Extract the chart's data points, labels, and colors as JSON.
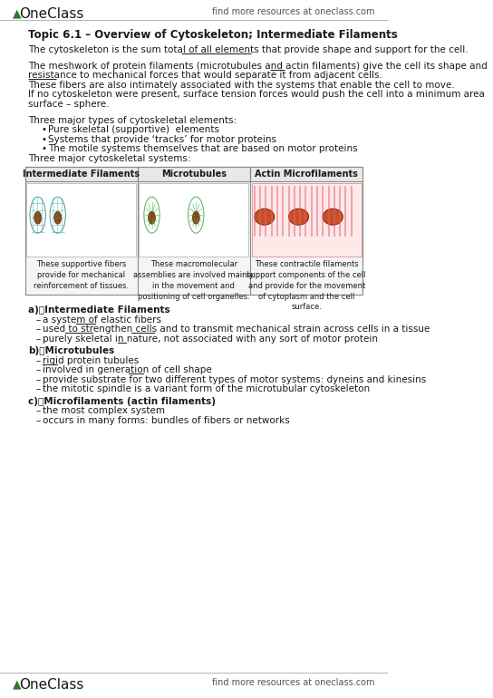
{
  "bg_color": "#ffffff",
  "header_text_left": "OneClass",
  "header_text_right": "find more resources at oneclass.com",
  "footer_text_left": "OneClass",
  "footer_text_right": "find more resources at oneclass.com",
  "logo_color": "#2d7a2d",
  "title": "Topic 6.1 – Overview of Cytoskeleton; Intermediate Filaments",
  "body_lines": [
    {
      "text": "The cytoskeleton is the sum total of all elements that provide shape and support for the cell.",
      "underline_parts": [
        "provide shape and support"
      ],
      "indent": 0,
      "bold": false
    },
    {
      "text": "",
      "indent": 0
    },
    {
      "text": "The meshwork of protein filaments (microtubules and actin filaments) give the cell its shape and",
      "underline_parts": [
        "shape"
      ],
      "indent": 0,
      "bold": false
    },
    {
      "text": "resistance to mechanical forces that would separate it from adjacent cells.",
      "underline_parts": [
        "resistance"
      ],
      "indent": 0,
      "bold": false
    },
    {
      "text": "These fibers are also intimately associated with the systems that enable the cell to move.",
      "underline_parts": [],
      "indent": 0,
      "bold": false
    },
    {
      "text": "If no cytoskeleton were present, surface tension forces would push the cell into a minimum area",
      "underline_parts": [],
      "indent": 0,
      "bold": false
    },
    {
      "text": "surface – sphere.",
      "underline_parts": [],
      "indent": 0,
      "bold": false
    },
    {
      "text": "",
      "indent": 0
    },
    {
      "text": "Three major types of cytoskeletal elements:",
      "underline_parts": [],
      "indent": 0,
      "bold": false
    },
    {
      "text": "Pure skeletal (supportive)  elements",
      "underline_parts": [],
      "indent": 1,
      "bullet": true,
      "bold": false
    },
    {
      "text": "Systems that provide ‘tracks’ for motor proteins",
      "underline_parts": [],
      "indent": 1,
      "bullet": true,
      "bold": false
    },
    {
      "text": "The motile systems themselves that are based on motor proteins",
      "underline_parts": [],
      "indent": 1,
      "bullet": true,
      "bold": false
    },
    {
      "text": "Three major cytoskeletal systems:",
      "underline_parts": [],
      "indent": 0,
      "bold": false
    }
  ],
  "table": {
    "headers": [
      "Intermediate Filaments",
      "Microtubules",
      "Actin Microfilaments"
    ],
    "descriptions": [
      "These supportive fibers\nprovide for mechanical\nreinforcement of tissues.",
      "These macromolecular\nassemblies are involved mainly\nin the movement and\npositioning of cell organelles.",
      "These contractile filaments\nsupport components of the cell\nand provide for the movement\nof cytoplasm and the cell\nsurface."
    ]
  },
  "section_a_title": "a)\tIntermediate Filaments",
  "section_a_items": [
    "a system of elastic fibers",
    "used to strengthen cells and to transmit mechanical strain across cells in a tissue",
    "purely skeletal in nature, not associated with any sort of motor protein"
  ],
  "section_a_underlines": [
    [
      "elastic"
    ],
    [
      "strengthen",
      "transmit"
    ],
    [
      "not"
    ]
  ],
  "section_b_title": "b)\tMicrotubules",
  "section_b_items": [
    "rigid protein tubules",
    "involved in generation of cell shape",
    "provide substrate for two different types of motor systems: dyneins and kinesins",
    "the mitotic spindle is a variant form of the microtubular cytoskeleton"
  ],
  "section_b_underlines": [
    [
      "rigid"
    ],
    [
      "shape"
    ],
    [],
    []
  ],
  "section_c_title": "c)\tMicrofilaments (actin filaments)",
  "section_c_items": [
    "the most complex system",
    "occurs in many forms: bundles of fibers or networks"
  ],
  "section_c_underlines": [
    [],
    []
  ]
}
